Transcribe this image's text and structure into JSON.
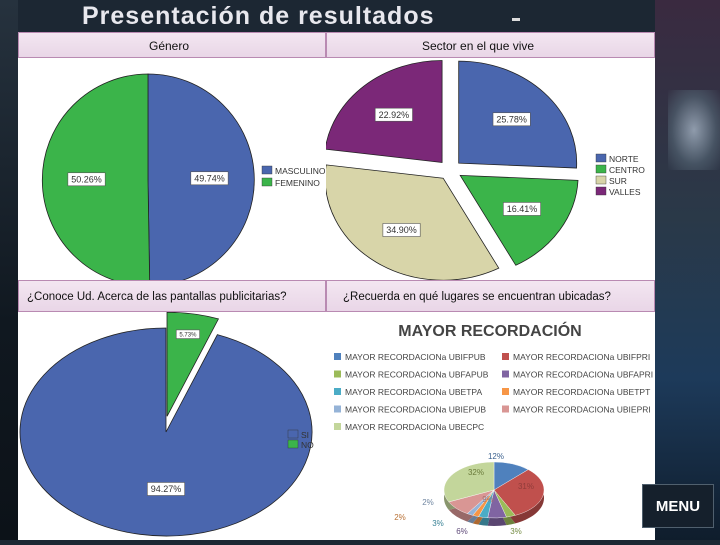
{
  "title": "Presentación de resultados",
  "menu_label": "MENU",
  "chart_data": [
    {
      "type": "pie",
      "title": "Género",
      "categories": [
        "MASCULINO",
        "FEMENINO"
      ],
      "values": [
        49.74,
        50.26
      ],
      "value_labels": [
        "49.74%",
        "50.26%"
      ],
      "colors": [
        "#4a66ae",
        "#3bb44a"
      ],
      "legend": "right"
    },
    {
      "type": "pie",
      "title": "Sector en el que vive",
      "categories": [
        "NORTE",
        "CENTRO",
        "SUR",
        "VALLES"
      ],
      "values": [
        25.78,
        16.41,
        34.9,
        22.92
      ],
      "value_labels": [
        "25.78%",
        "16.41%",
        "34.90%",
        "22.92%"
      ],
      "colors": [
        "#4a66ae",
        "#3bb44a",
        "#d8d5a9",
        "#7b2878"
      ],
      "legend": "right"
    },
    {
      "type": "pie",
      "title": "¿Conoce Ud. Acerca de las pantallas publicitarias?",
      "categories": [
        "SI",
        "NO"
      ],
      "values": [
        94.27,
        5.73
      ],
      "value_labels": [
        "94.27%",
        "5.73%"
      ],
      "colors": [
        "#4a66ae",
        "#3bb44a"
      ],
      "legend": "right"
    },
    {
      "type": "pie",
      "title": "¿Recuerda en qué lugares se encuentran ubicadas?",
      "subtitle": "MAYOR RECORDACIÓN",
      "categories": [
        "MAYOR RECORDACIONa UBIFPUB",
        "MAYOR RECORDACIONa UBIFPRI",
        "MAYOR RECORDACIONa UBFAPUB",
        "MAYOR RECORDACIONa UBFAPRI",
        "MAYOR RECORDACIONa UBETPA",
        "MAYOR RECORDACIONa UBETPT",
        "MAYOR RECORDACIONa UBIEPUB",
        "MAYOR RECORDACIONa UBIEPRI",
        "MAYOR RECORDACIONa UBECPC"
      ],
      "values": [
        12,
        31,
        3,
        6,
        3,
        2,
        2,
        9,
        32
      ],
      "value_labels": [
        "12%",
        "31%",
        "3%",
        "6%",
        "3%",
        "2%",
        "2%",
        "9%",
        "32%"
      ],
      "colors": [
        "#4f81bd",
        "#c0504d",
        "#9bbb59",
        "#8064a2",
        "#4bacc6",
        "#f79646",
        "#95b3d7",
        "#d99694",
        "#c3d69b"
      ],
      "legend": "top"
    }
  ]
}
